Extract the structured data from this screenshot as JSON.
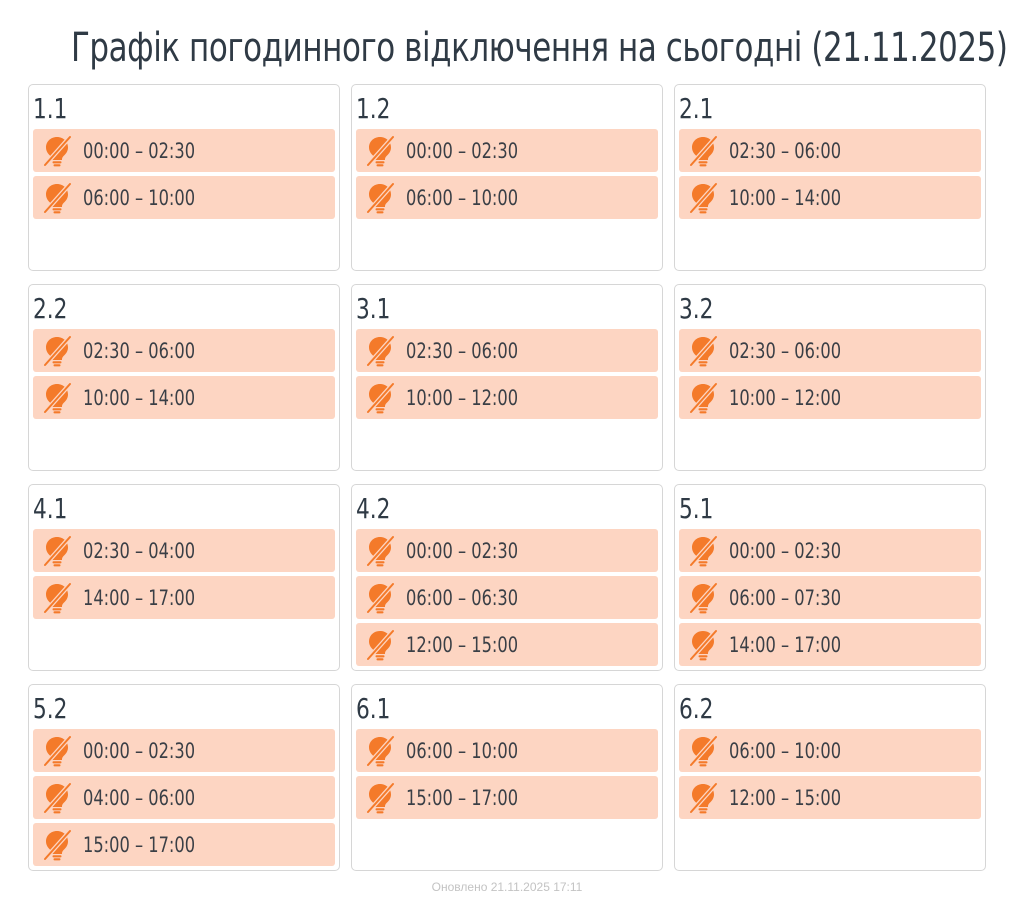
{
  "header": {
    "title": "Графік погодинного відключення на сьогодні (21.11.2025)"
  },
  "icons": {
    "outage": "lightbulb-off-icon"
  },
  "colors": {
    "slot_background": "#fdd5c2",
    "icon_orange": "#f47a2a",
    "card_border": "#d6d6d6",
    "text": "#2f3a45"
  },
  "groups": [
    {
      "name": "1.1",
      "slots": [
        "00:00 – 02:30",
        "06:00 – 10:00"
      ]
    },
    {
      "name": "1.2",
      "slots": [
        "00:00 – 02:30",
        "06:00 – 10:00"
      ]
    },
    {
      "name": "2.1",
      "slots": [
        "02:30 – 06:00",
        "10:00 – 14:00"
      ]
    },
    {
      "name": "2.2",
      "slots": [
        "02:30 – 06:00",
        "10:00 – 14:00"
      ]
    },
    {
      "name": "3.1",
      "slots": [
        "02:30 – 06:00",
        "10:00 – 12:00"
      ]
    },
    {
      "name": "3.2",
      "slots": [
        "02:30 – 06:00",
        "10:00 – 12:00"
      ]
    },
    {
      "name": "4.1",
      "slots": [
        "02:30 – 04:00",
        "14:00 – 17:00"
      ]
    },
    {
      "name": "4.2",
      "slots": [
        "00:00 – 02:30",
        "06:00 – 06:30",
        "12:00 – 15:00"
      ]
    },
    {
      "name": "5.1",
      "slots": [
        "00:00 – 02:30",
        "06:00 – 07:30",
        "14:00 – 17:00"
      ]
    },
    {
      "name": "5.2",
      "slots": [
        "00:00 – 02:30",
        "04:00 – 06:00",
        "15:00 – 17:00"
      ]
    },
    {
      "name": "6.1",
      "slots": [
        "06:00 – 10:00",
        "15:00 – 17:00"
      ]
    },
    {
      "name": "6.2",
      "slots": [
        "06:00 – 10:00",
        "12:00 – 15:00"
      ]
    }
  ],
  "footer": {
    "updated": "Оновлено 21.11.2025 17:11"
  }
}
